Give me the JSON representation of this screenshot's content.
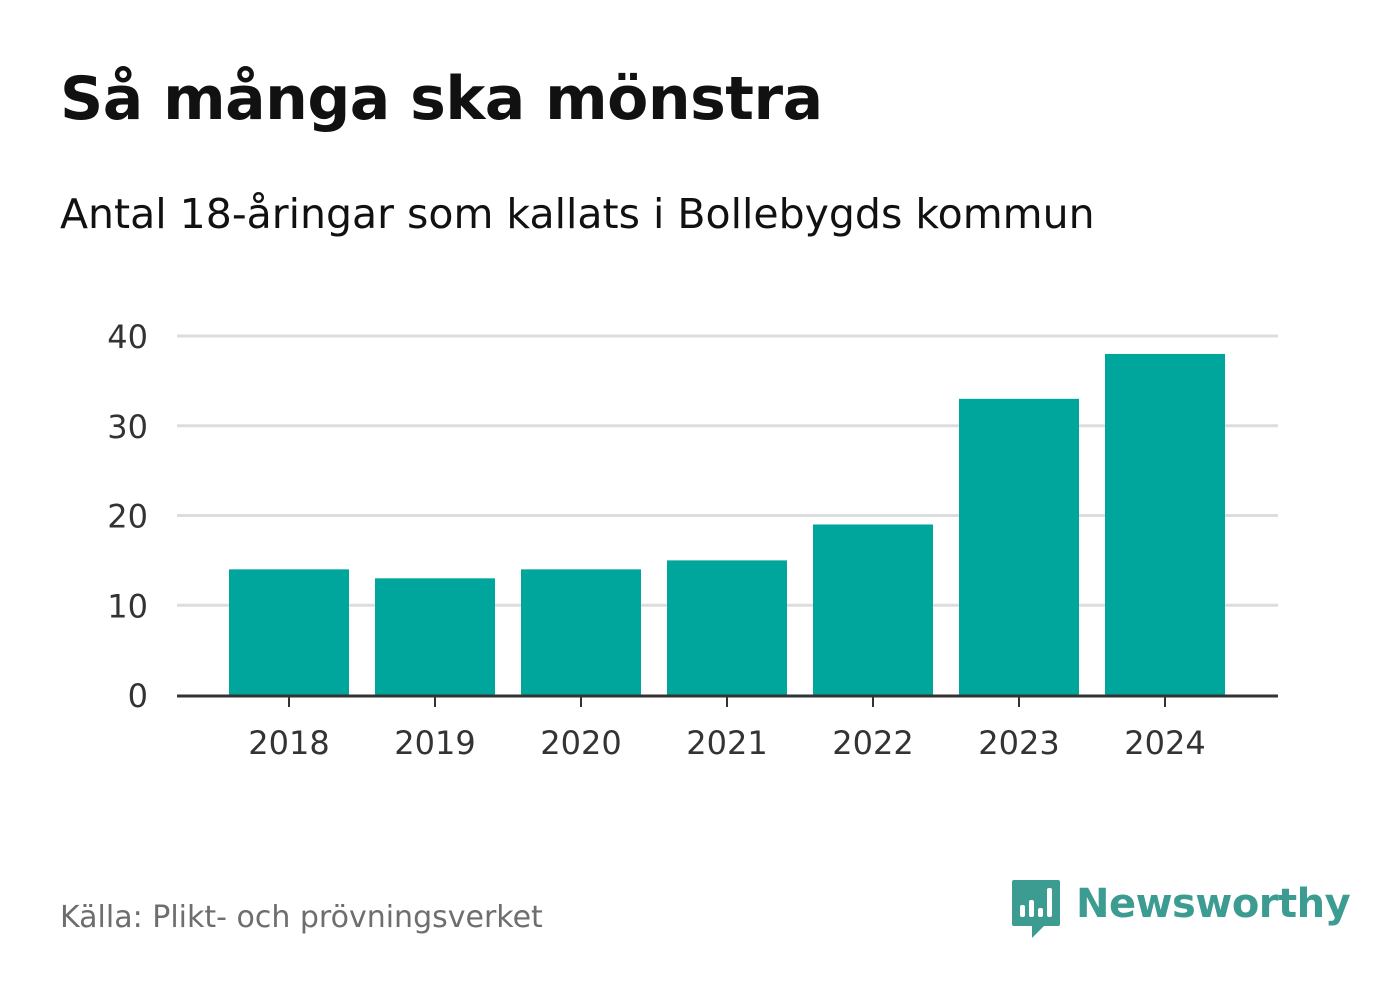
{
  "header": {
    "title": "Så många ska mönstra",
    "subtitle": "Antal 18-åringar som kallats i Bollebygds kommun"
  },
  "footer": {
    "source": "Källa: Plikt- och prövningsverket",
    "brand": "Newsworthy",
    "brand_icon": "bar-chart-speech-bubble-icon"
  },
  "colors": {
    "bar": "#00a59b",
    "grid": "#dddddd",
    "axis": "#333333",
    "brand": "#3d9c91"
  },
  "chart_data": {
    "type": "bar",
    "title": "Så många ska mönstra",
    "subtitle": "Antal 18-åringar som kallats i Bollebygds kommun",
    "categories": [
      "2018",
      "2019",
      "2020",
      "2021",
      "2022",
      "2023",
      "2024"
    ],
    "values": [
      14,
      13,
      14,
      15,
      19,
      33,
      38
    ],
    "xlabel": "",
    "ylabel": "",
    "ylim": [
      0,
      40
    ],
    "yticks": [
      0,
      10,
      20,
      30,
      40
    ],
    "ytick_labels": [
      "0",
      "10",
      "20",
      "30",
      "40"
    ],
    "grid": true,
    "legend": "none"
  }
}
